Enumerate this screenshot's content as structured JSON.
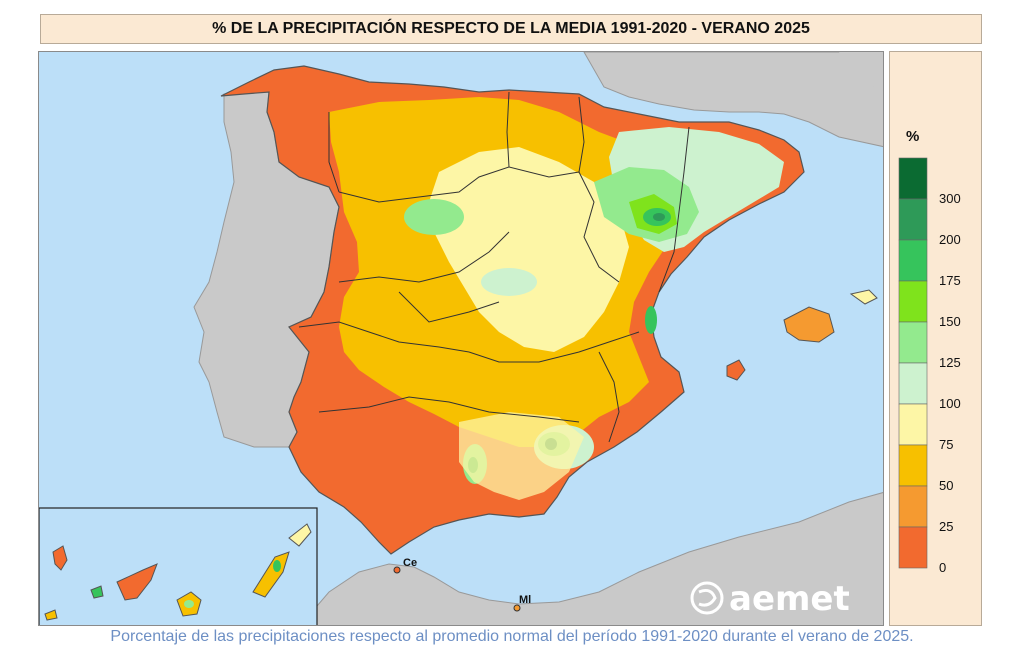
{
  "title": "% DE LA PRECIPITACIÓN RESPECTO DE LA MEDIA 1991-2020 - VERANO 2025",
  "legend": {
    "unit": "%",
    "bins": [
      {
        "label": "300",
        "color": "#0b6b32"
      },
      {
        "label": "200",
        "color": "#2e9a58"
      },
      {
        "label": "175",
        "color": "#36c45c"
      },
      {
        "label": "150",
        "color": "#7fe31c"
      },
      {
        "label": "125",
        "color": "#93ea8e"
      },
      {
        "label": "100",
        "color": "#cdf2cf"
      },
      {
        "label": "75",
        "color": "#fdf6a6"
      },
      {
        "label": "50",
        "color": "#f7c000"
      },
      {
        "label": "25",
        "color": "#f59a30"
      },
      {
        "label": "0",
        "color": "#f26a2f"
      }
    ]
  },
  "map": {
    "places": {
      "ceuta": "Ce",
      "melilla": "Ml"
    },
    "colors": {
      "sea": "#bcdff8",
      "foreign_land": "#c9c9c9"
    }
  },
  "logo": "aemet",
  "caption": "Porcentaje de las precipitaciones respecto al promedio normal del período 1991-2020 durante el verano de 2025."
}
